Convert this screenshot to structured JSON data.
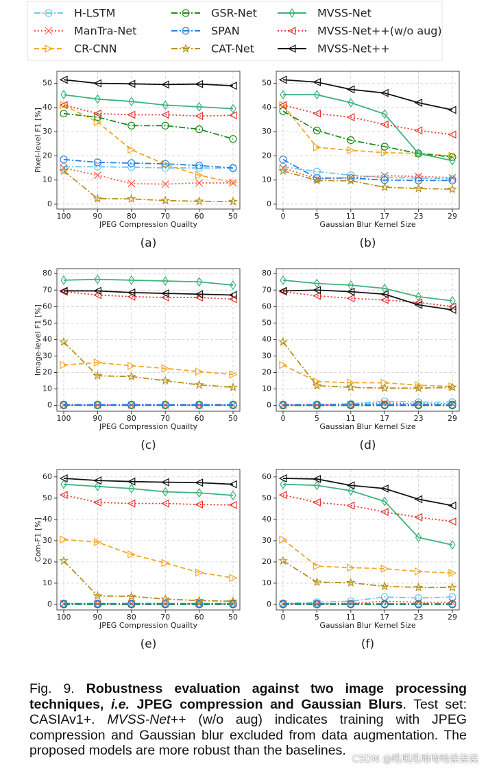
{
  "chart_data": [
    {
      "type": "line",
      "panel": "(a)",
      "xlabel": "JPEG Compression Quailty",
      "ylabel": "Pixel-level F1 [%]",
      "grid": true,
      "categories": [
        "100",
        "90",
        "80",
        "70",
        "60",
        "50"
      ],
      "ylim": [
        -2,
        55
      ],
      "yticks": [
        0,
        10,
        20,
        30,
        40,
        50
      ],
      "series": [
        {
          "name": "H-LSTM",
          "color": "#6ec6f0",
          "dash": "dashdot",
          "marker": "circle",
          "values": [
            15.5,
            15.5,
            15.3,
            15,
            15,
            14.8
          ]
        },
        {
          "name": "ManTra-Net",
          "color": "#f4553b",
          "dash": "dotted",
          "marker": "x",
          "values": [
            15,
            12,
            8.5,
            8.3,
            8.8,
            8.8
          ]
        },
        {
          "name": "CR-CNN",
          "color": "#f5a623",
          "dash": "dashed",
          "marker": "tri-right",
          "values": [
            41,
            34,
            22.5,
            16.5,
            12,
            9
          ]
        },
        {
          "name": "GSR-Net",
          "color": "#1e8a1e",
          "dash": "dashdot",
          "marker": "circle",
          "values": [
            37.5,
            36,
            32.5,
            32.5,
            31,
            27
          ]
        },
        {
          "name": "SPAN",
          "color": "#2a7fe0",
          "dash": "dashdot",
          "marker": "circle",
          "values": [
            18.5,
            17.3,
            17,
            16.7,
            16,
            15
          ]
        },
        {
          "name": "CAT-Net",
          "color": "#b8901c",
          "dash": "dashdot",
          "marker": "star",
          "values": [
            13.8,
            2.3,
            2.2,
            1.5,
            1.2,
            1.1
          ]
        },
        {
          "name": "MVSS-Net",
          "color": "#3db37a",
          "dash": "solid",
          "marker": "diamond",
          "values": [
            45.3,
            43.5,
            42.5,
            41,
            40.3,
            39.5
          ]
        },
        {
          "name": "MVSS-Net++(w/o aug)",
          "color": "#e8322c",
          "dash": "dotted",
          "marker": "tri-left",
          "values": [
            41,
            37.5,
            37,
            37,
            36.5,
            36.8
          ]
        },
        {
          "name": "MVSS-Net++",
          "color": "#111111",
          "dash": "solid",
          "marker": "tri-left",
          "values": [
            51.5,
            50,
            49.8,
            49.5,
            49.7,
            49
          ]
        }
      ]
    },
    {
      "type": "line",
      "panel": "(b)",
      "xlabel": "Gaussian Blur Kernel Size",
      "grid": true,
      "categories": [
        "0",
        "5",
        "11",
        "17",
        "23",
        "29"
      ],
      "ylim": [
        -2,
        55
      ],
      "yticks": [
        0,
        10,
        20,
        30,
        40,
        50
      ],
      "series": [
        {
          "name": "H-LSTM",
          "color": "#6ec6f0",
          "dash": "dashdot",
          "marker": "circle",
          "values": [
            15.5,
            13.5,
            12,
            11,
            10.8,
            10.5
          ]
        },
        {
          "name": "ManTra-Net",
          "color": "#f4553b",
          "dash": "dotted",
          "marker": "x",
          "values": [
            15,
            10.5,
            11,
            11.8,
            11.5,
            11
          ]
        },
        {
          "name": "CR-CNN",
          "color": "#f5a623",
          "dash": "dashed",
          "marker": "tri-right",
          "values": [
            41,
            23.5,
            22.3,
            21.3,
            21,
            20
          ]
        },
        {
          "name": "GSR-Net",
          "color": "#1e8a1e",
          "dash": "dashdot",
          "marker": "circle",
          "values": [
            38.5,
            30.5,
            26.5,
            23.8,
            21,
            19.5
          ]
        },
        {
          "name": "SPAN",
          "color": "#2a7fe0",
          "dash": "dashdot",
          "marker": "circle",
          "values": [
            18.5,
            10.8,
            10.8,
            10,
            9.8,
            9.8
          ]
        },
        {
          "name": "CAT-Net",
          "color": "#b8901c",
          "dash": "dashdot",
          "marker": "star",
          "values": [
            13.8,
            9.8,
            9.7,
            7,
            6.5,
            6.2
          ]
        },
        {
          "name": "MVSS-Net",
          "color": "#3db37a",
          "dash": "solid",
          "marker": "diamond",
          "values": [
            45.3,
            45.3,
            42,
            37.3,
            21,
            18
          ]
        },
        {
          "name": "MVSS-Net++(w/o aug)",
          "color": "#e8322c",
          "dash": "dotted",
          "marker": "tri-left",
          "values": [
            41,
            37.5,
            36,
            33,
            30.5,
            28.8
          ]
        },
        {
          "name": "MVSS-Net++",
          "color": "#111111",
          "dash": "solid",
          "marker": "tri-left",
          "values": [
            51.5,
            50.5,
            47.5,
            46,
            42,
            39
          ]
        }
      ]
    },
    {
      "type": "line",
      "panel": "(c)",
      "xlabel": "JPEG Compression Quailty",
      "ylabel": "Image-level F1 [%]",
      "grid": true,
      "categories": [
        "100",
        "90",
        "80",
        "70",
        "60",
        "50"
      ],
      "ylim": [
        -3.5,
        83
      ],
      "yticks": [
        0,
        10,
        20,
        30,
        40,
        50,
        60,
        70,
        80
      ],
      "series": [
        {
          "name": "H-LSTM",
          "color": "#6ec6f0",
          "dash": "dashdot",
          "marker": "circle",
          "values": [
            0.3,
            0.3,
            0.3,
            0.3,
            0.3,
            0.3
          ]
        },
        {
          "name": "ManTra-Net",
          "color": "#f4553b",
          "dash": "dotted",
          "marker": "x",
          "values": [
            0.2,
            0.2,
            0.2,
            0.2,
            0.2,
            0.2
          ]
        },
        {
          "name": "CR-CNN",
          "color": "#f5a623",
          "dash": "dashed",
          "marker": "tri-right",
          "values": [
            24.5,
            26,
            24,
            22.5,
            20.5,
            18.8
          ]
        },
        {
          "name": "GSR-Net",
          "color": "#1e8a1e",
          "dash": "dashdot",
          "marker": "circle",
          "values": [
            0.1,
            0.1,
            0.1,
            0.1,
            0.1,
            0.1
          ]
        },
        {
          "name": "SPAN",
          "color": "#2a7fe0",
          "dash": "dashdot",
          "marker": "circle",
          "values": [
            0.5,
            0.5,
            0.5,
            0.5,
            0.5,
            0.5
          ]
        },
        {
          "name": "CAT-Net",
          "color": "#b8901c",
          "dash": "dashdot",
          "marker": "star",
          "values": [
            38.5,
            18,
            17.5,
            15,
            12.5,
            11
          ]
        },
        {
          "name": "MVSS-Net",
          "color": "#3db37a",
          "dash": "solid",
          "marker": "diamond",
          "values": [
            76,
            76.5,
            76,
            75.5,
            75,
            73
          ]
        },
        {
          "name": "MVSS-Net++(w/o aug)",
          "color": "#e8322c",
          "dash": "dotted",
          "marker": "tri-left",
          "values": [
            69,
            67,
            66,
            65.5,
            65.5,
            64.5
          ]
        },
        {
          "name": "MVSS-Net++",
          "color": "#111111",
          "dash": "solid",
          "marker": "tri-left",
          "values": [
            69.5,
            69.5,
            68.5,
            68,
            67.5,
            67
          ]
        }
      ]
    },
    {
      "type": "line",
      "panel": "(d)",
      "xlabel": "Gaussian Blur Kernel Size",
      "grid": true,
      "categories": [
        "0",
        "5",
        "11",
        "17",
        "23",
        "29"
      ],
      "ylim": [
        -3.5,
        83
      ],
      "yticks": [
        0,
        10,
        20,
        30,
        40,
        50,
        60,
        70,
        80
      ],
      "series": [
        {
          "name": "H-LSTM",
          "color": "#6ec6f0",
          "dash": "dashdot",
          "marker": "circle",
          "values": [
            0.3,
            0.5,
            1,
            2.5,
            2,
            2
          ]
        },
        {
          "name": "ManTra-Net",
          "color": "#f4553b",
          "dash": "dotted",
          "marker": "x",
          "values": [
            0.2,
            0.2,
            0.5,
            1.5,
            1,
            1
          ]
        },
        {
          "name": "CR-CNN",
          "color": "#f5a623",
          "dash": "dashed",
          "marker": "tri-right",
          "values": [
            24.5,
            14.5,
            13.8,
            13.7,
            12.3,
            11.5
          ]
        },
        {
          "name": "GSR-Net",
          "color": "#1e8a1e",
          "dash": "dashdot",
          "marker": "circle",
          "values": [
            0,
            0,
            0,
            0,
            0,
            0
          ]
        },
        {
          "name": "SPAN",
          "color": "#2a7fe0",
          "dash": "dashdot",
          "marker": "circle",
          "values": [
            0.5,
            0.5,
            0.5,
            0.5,
            0.5,
            0.5
          ]
        },
        {
          "name": "CAT-Net",
          "color": "#b8901c",
          "dash": "dashdot",
          "marker": "star",
          "values": [
            38.5,
            12,
            11,
            10.5,
            10.5,
            11
          ]
        },
        {
          "name": "MVSS-Net",
          "color": "#3db37a",
          "dash": "solid",
          "marker": "diamond",
          "values": [
            76,
            74,
            73,
            71,
            66,
            63.5
          ]
        },
        {
          "name": "MVSS-Net++(w/o aug)",
          "color": "#e8322c",
          "dash": "dotted",
          "marker": "tri-left",
          "values": [
            69,
            66.5,
            65,
            64,
            62.5,
            60
          ]
        },
        {
          "name": "MVSS-Net++",
          "color": "#111111",
          "dash": "solid",
          "marker": "tri-left",
          "values": [
            69.5,
            70,
            69,
            67.5,
            61,
            58
          ]
        }
      ]
    },
    {
      "type": "line",
      "panel": "(e)",
      "xlabel": "JPEG Compression Quailty",
      "ylabel": "Com-F1 [%]",
      "grid": true,
      "categories": [
        "100",
        "90",
        "80",
        "70",
        "60",
        "50"
      ],
      "ylim": [
        -2.6,
        63.5
      ],
      "yticks": [
        0,
        10,
        20,
        30,
        40,
        50,
        60
      ],
      "series": [
        {
          "name": "H-LSTM",
          "color": "#6ec6f0",
          "dash": "dashdot",
          "marker": "circle",
          "values": [
            0.5,
            0.5,
            0.5,
            0.5,
            0.5,
            0.5
          ]
        },
        {
          "name": "ManTra-Net",
          "color": "#f4553b",
          "dash": "dotted",
          "marker": "x",
          "values": [
            0.3,
            0.3,
            0.3,
            0.3,
            0.3,
            0.3
          ]
        },
        {
          "name": "CR-CNN",
          "color": "#f5a623",
          "dash": "dashed",
          "marker": "tri-right",
          "values": [
            30.5,
            29.3,
            23.5,
            19.5,
            15,
            12.5
          ]
        },
        {
          "name": "GSR-Net",
          "color": "#1e8a1e",
          "dash": "dashdot",
          "marker": "circle",
          "values": [
            0,
            0,
            0,
            0,
            0,
            0
          ]
        },
        {
          "name": "SPAN",
          "color": "#2a7fe0",
          "dash": "dashdot",
          "marker": "circle",
          "values": [
            0.3,
            0.3,
            0.3,
            0.3,
            0.3,
            0.3
          ]
        },
        {
          "name": "CAT-Net",
          "color": "#b8901c",
          "dash": "dashdot",
          "marker": "star",
          "values": [
            20.5,
            4,
            3.8,
            2.5,
            1.8,
            1.5
          ]
        },
        {
          "name": "MVSS-Net",
          "color": "#3db37a",
          "dash": "solid",
          "marker": "diamond",
          "values": [
            56.5,
            55.5,
            54.5,
            53,
            52.5,
            51.3
          ]
        },
        {
          "name": "MVSS-Net++(w/o aug)",
          "color": "#e8322c",
          "dash": "dotted",
          "marker": "tri-left",
          "values": [
            51.5,
            48,
            47.5,
            47.5,
            47,
            46.8
          ]
        },
        {
          "name": "MVSS-Net++",
          "color": "#111111",
          "dash": "solid",
          "marker": "tri-left",
          "values": [
            59.3,
            58.3,
            57.8,
            57.5,
            57.3,
            56.5
          ]
        }
      ]
    },
    {
      "type": "line",
      "panel": "(f)",
      "xlabel": "Gaussian Blur Kernel Size",
      "grid": true,
      "categories": [
        "0",
        "5",
        "11",
        "17",
        "23",
        "29"
      ],
      "ylim": [
        -2.6,
        63.5
      ],
      "yticks": [
        0,
        10,
        20,
        30,
        40,
        50,
        60
      ],
      "series": [
        {
          "name": "H-LSTM",
          "color": "#6ec6f0",
          "dash": "dashdot",
          "marker": "circle",
          "values": [
            0.5,
            1,
            1.5,
            3.5,
            3,
            3.5
          ]
        },
        {
          "name": "ManTra-Net",
          "color": "#f4553b",
          "dash": "dotted",
          "marker": "x",
          "values": [
            0.3,
            0.3,
            0.5,
            1.5,
            1,
            1
          ]
        },
        {
          "name": "CR-CNN",
          "color": "#f5a623",
          "dash": "dashed",
          "marker": "tri-right",
          "values": [
            30.5,
            18,
            17.3,
            16.8,
            15.5,
            14.8
          ]
        },
        {
          "name": "GSR-Net",
          "color": "#1e8a1e",
          "dash": "dashdot",
          "marker": "circle",
          "values": [
            0,
            0,
            0,
            0,
            0,
            0
          ]
        },
        {
          "name": "SPAN",
          "color": "#2a7fe0",
          "dash": "dashdot",
          "marker": "circle",
          "values": [
            0.3,
            0.3,
            0.3,
            0.3,
            0.3,
            0.3
          ]
        },
        {
          "name": "CAT-Net",
          "color": "#b8901c",
          "dash": "dashdot",
          "marker": "star",
          "values": [
            20.5,
            10.5,
            10.2,
            8.5,
            8,
            8
          ]
        },
        {
          "name": "MVSS-Net",
          "color": "#3db37a",
          "dash": "solid",
          "marker": "diamond",
          "values": [
            56.5,
            56,
            53.5,
            48.5,
            31.5,
            28
          ]
        },
        {
          "name": "MVSS-Net++(w/o aug)",
          "color": "#e8322c",
          "dash": "dotted",
          "marker": "tri-left",
          "values": [
            51.5,
            48,
            46.5,
            43.5,
            41,
            39
          ]
        },
        {
          "name": "MVSS-Net++",
          "color": "#111111",
          "dash": "solid",
          "marker": "tri-left",
          "values": [
            59.3,
            59,
            56,
            54.5,
            49.5,
            46.5
          ]
        }
      ]
    }
  ],
  "caption": [
    {
      "text": "Fig. 9. ",
      "style": "normal"
    },
    {
      "text": "Robustness evaluation against two image processing techniques, ",
      "style": "bold"
    },
    {
      "text": "i.e.",
      "style": "bold-italic"
    },
    {
      "text": " JPEG compression and Gaussian Blurs",
      "style": "bold"
    },
    {
      "text": ". Test set: CASIAv1+. ",
      "style": "normal"
    },
    {
      "text": "MVSS-Net++",
      "style": "italic"
    },
    {
      "text": " (w/o aug) indicates training with JPEG compression and Gaussian blur excluded from data augmentation. The proposed models are more robust than the baselines.",
      "style": "normal"
    }
  ],
  "watermark": "CSDN @吼吼吼哈哈哈诶诶诶"
}
